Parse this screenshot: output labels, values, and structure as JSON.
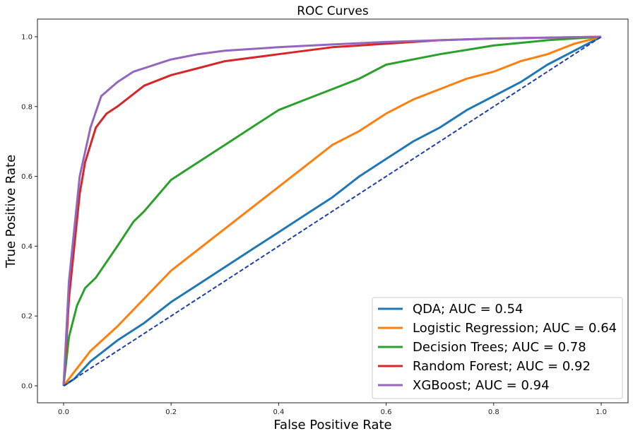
{
  "chart_data": {
    "type": "line",
    "title": "ROC Curves",
    "xlabel": "False Positive Rate",
    "ylabel": "True Positive Rate",
    "xlim": [
      -0.05,
      1.05
    ],
    "ylim": [
      -0.05,
      1.05
    ],
    "xticks": [
      "0.0",
      "0.2",
      "0.4",
      "0.6",
      "0.8",
      "1.0"
    ],
    "yticks": [
      "0.0",
      "0.2",
      "0.4",
      "0.6",
      "0.8",
      "1.0"
    ],
    "grid": false,
    "legend_position": "bottom-right",
    "baseline": {
      "color": "#1f3fa6",
      "x": [
        0,
        1
      ],
      "y": [
        0,
        1
      ],
      "style": "dashed"
    },
    "series": [
      {
        "name": "QDA; AUC = 0.54",
        "color": "#1f77b4",
        "x": [
          0,
          0.02,
          0.05,
          0.1,
          0.15,
          0.2,
          0.25,
          0.3,
          0.35,
          0.4,
          0.45,
          0.5,
          0.55,
          0.6,
          0.65,
          0.7,
          0.75,
          0.8,
          0.85,
          0.9,
          0.95,
          1
        ],
        "y": [
          0,
          0.02,
          0.07,
          0.13,
          0.18,
          0.24,
          0.29,
          0.34,
          0.39,
          0.44,
          0.49,
          0.54,
          0.6,
          0.65,
          0.7,
          0.74,
          0.79,
          0.83,
          0.87,
          0.92,
          0.96,
          1
        ]
      },
      {
        "name": "Logistic Regression; AUC = 0.64",
        "color": "#ff7f0e",
        "x": [
          0,
          0.02,
          0.05,
          0.1,
          0.15,
          0.2,
          0.25,
          0.3,
          0.35,
          0.4,
          0.45,
          0.5,
          0.55,
          0.6,
          0.65,
          0.7,
          0.75,
          0.8,
          0.85,
          0.9,
          0.95,
          1
        ],
        "y": [
          0,
          0.04,
          0.1,
          0.17,
          0.25,
          0.33,
          0.39,
          0.45,
          0.51,
          0.57,
          0.63,
          0.69,
          0.73,
          0.78,
          0.82,
          0.85,
          0.88,
          0.9,
          0.93,
          0.95,
          0.98,
          1
        ]
      },
      {
        "name": "Decision Trees; AUC = 0.78",
        "color": "#2ca02c",
        "x": [
          0,
          0.01,
          0.025,
          0.04,
          0.06,
          0.1,
          0.13,
          0.15,
          0.2,
          0.25,
          0.3,
          0.35,
          0.4,
          0.45,
          0.5,
          0.55,
          0.6,
          0.7,
          0.8,
          0.9,
          1
        ],
        "y": [
          0,
          0.14,
          0.23,
          0.28,
          0.31,
          0.4,
          0.47,
          0.5,
          0.59,
          0.64,
          0.69,
          0.74,
          0.79,
          0.82,
          0.85,
          0.88,
          0.92,
          0.95,
          0.975,
          0.99,
          1
        ]
      },
      {
        "name": "Random Forest; AUC = 0.92",
        "color": "#d62728",
        "x": [
          0,
          0.005,
          0.01,
          0.02,
          0.03,
          0.04,
          0.06,
          0.08,
          0.1,
          0.15,
          0.2,
          0.25,
          0.3,
          0.4,
          0.5,
          0.6,
          0.7,
          0.8,
          1
        ],
        "y": [
          0,
          0.12,
          0.25,
          0.4,
          0.55,
          0.64,
          0.74,
          0.78,
          0.8,
          0.86,
          0.89,
          0.91,
          0.93,
          0.95,
          0.97,
          0.98,
          0.99,
          0.995,
          1
        ]
      },
      {
        "name": "XGBoost; AUC = 0.94",
        "color": "#9467bd",
        "x": [
          0,
          0.005,
          0.01,
          0.02,
          0.03,
          0.05,
          0.07,
          0.1,
          0.13,
          0.2,
          0.25,
          0.3,
          0.4,
          0.5,
          0.6,
          0.7,
          0.8,
          1
        ],
        "y": [
          0,
          0.15,
          0.3,
          0.45,
          0.6,
          0.74,
          0.83,
          0.87,
          0.9,
          0.935,
          0.95,
          0.96,
          0.97,
          0.978,
          0.985,
          0.99,
          0.995,
          1
        ]
      }
    ]
  }
}
